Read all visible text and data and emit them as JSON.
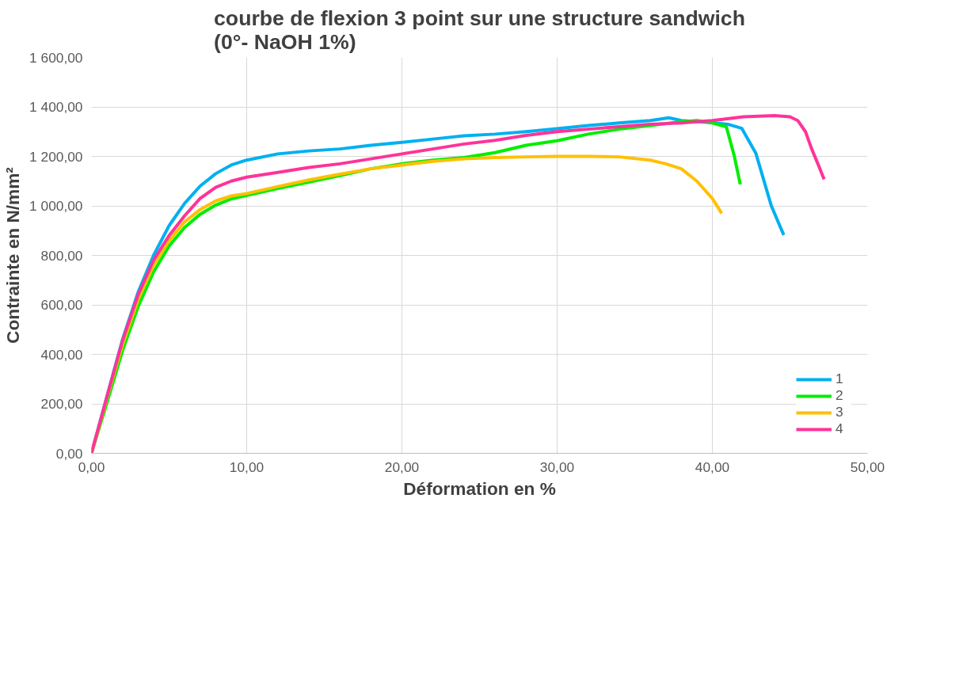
{
  "chart_data": {
    "type": "line",
    "title": "courbe de flexion 3 point sur une structure sandwich\n(0°- NaOH 1%)",
    "xlabel": "Déformation en %",
    "ylabel": "Contrainte en N/mm²",
    "xlim": [
      0,
      50
    ],
    "ylim": [
      0,
      1600
    ],
    "xticks": [
      {
        "value": 0,
        "label": "0,00"
      },
      {
        "value": 10,
        "label": "10,00"
      },
      {
        "value": 20,
        "label": "20,00"
      },
      {
        "value": 30,
        "label": "30,00"
      },
      {
        "value": 40,
        "label": "40,00"
      },
      {
        "value": 50,
        "label": "50,00"
      }
    ],
    "yticks": [
      {
        "value": 0,
        "label": "0,00"
      },
      {
        "value": 200,
        "label": "200,00"
      },
      {
        "value": 400,
        "label": "400,00"
      },
      {
        "value": 600,
        "label": "600,00"
      },
      {
        "value": 800,
        "label": "800,00"
      },
      {
        "value": 1000,
        "label": "1 000,00"
      },
      {
        "value": 1200,
        "label": "1 200,00"
      },
      {
        "value": 1400,
        "label": "1 400,00"
      },
      {
        "value": 1600,
        "label": "1 600,00"
      }
    ],
    "grid": true,
    "legend": "bottom right",
    "marker": "none",
    "line_style": "solid",
    "series": [
      {
        "name": "1",
        "color": "#00b0f0",
        "x": [
          0,
          1,
          2,
          3,
          4,
          5,
          6,
          7,
          8,
          9,
          10,
          12,
          14,
          16,
          18,
          20,
          22,
          24,
          26,
          28,
          30,
          32,
          34,
          36,
          37.2,
          38,
          40,
          41,
          41.9,
          42.8,
          43.8,
          44.6
        ],
        "values": [
          0,
          230,
          460,
          650,
          800,
          920,
          1010,
          1080,
          1130,
          1165,
          1185,
          1210,
          1222,
          1230,
          1245,
          1257,
          1270,
          1283,
          1290,
          1300,
          1312,
          1325,
          1335,
          1345,
          1356,
          1345,
          1336,
          1330,
          1313,
          1213,
          1000,
          882
        ]
      },
      {
        "name": "2",
        "color": "#00ee00",
        "x": [
          0,
          1,
          2,
          3,
          4,
          5,
          6,
          7,
          8,
          9,
          10,
          12,
          14,
          16,
          18,
          20,
          22,
          24,
          26,
          28,
          30,
          32,
          34,
          36,
          38,
          39,
          40,
          40.9,
          41.4,
          41.8
        ],
        "values": [
          0,
          205,
          415,
          592,
          733,
          838,
          913,
          966,
          1003,
          1028,
          1042,
          1070,
          1096,
          1122,
          1150,
          1170,
          1185,
          1195,
          1215,
          1245,
          1263,
          1290,
          1310,
          1325,
          1340,
          1345,
          1335,
          1320,
          1205,
          1087
        ]
      },
      {
        "name": "3",
        "color": "#ffc000",
        "x": [
          0,
          1,
          2,
          3,
          4,
          5,
          6,
          7,
          8,
          9,
          10,
          12,
          14,
          16,
          18,
          20,
          22,
          24,
          26,
          28,
          30,
          32,
          34,
          36,
          37,
          38,
          39,
          40,
          40.6
        ],
        "values": [
          0,
          225,
          440,
          620,
          760,
          860,
          935,
          985,
          1020,
          1040,
          1050,
          1078,
          1105,
          1128,
          1150,
          1165,
          1180,
          1190,
          1195,
          1198,
          1200,
          1200,
          1198,
          1185,
          1170,
          1150,
          1100,
          1030,
          970
        ]
      },
      {
        "name": "4",
        "color": "#ff3399",
        "x": [
          0,
          1,
          2,
          3,
          4,
          5,
          6,
          7,
          8,
          9,
          10,
          12,
          14,
          16,
          18,
          20,
          22,
          24,
          26,
          28,
          30,
          32,
          34,
          36,
          38,
          40,
          42,
          44,
          45,
          45.5,
          46,
          46.4,
          46.8,
          47.2
        ],
        "values": [
          0,
          230,
          455,
          640,
          780,
          880,
          960,
          1030,
          1075,
          1100,
          1116,
          1135,
          1155,
          1170,
          1190,
          1210,
          1230,
          1250,
          1265,
          1285,
          1300,
          1310,
          1320,
          1330,
          1335,
          1345,
          1360,
          1365,
          1360,
          1345,
          1300,
          1230,
          1170,
          1107
        ]
      }
    ]
  }
}
